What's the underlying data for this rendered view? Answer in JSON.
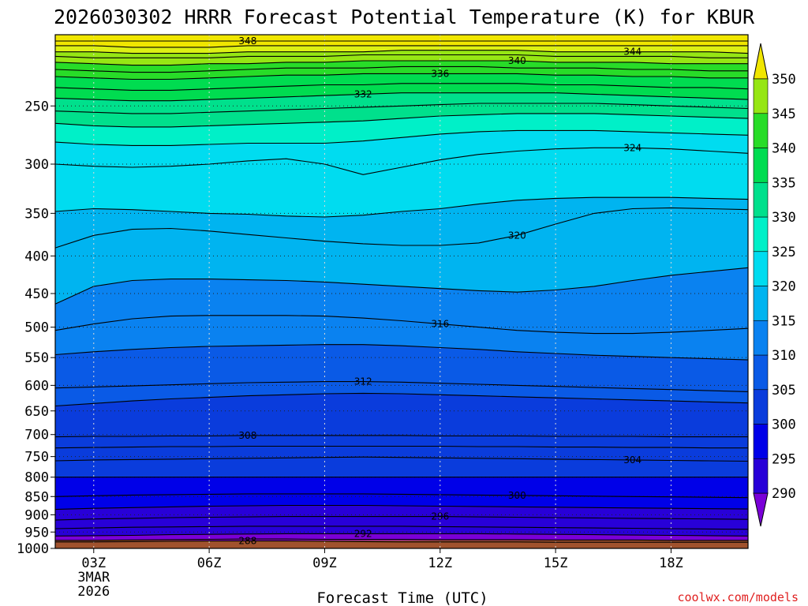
{
  "chart_data": {
    "type": "contour",
    "title": "2026030302 HRRR Forecast Potential Temperature (K) for KBUR",
    "xlabel": "Forecast Time (UTC)",
    "ylabel": "",
    "credit": "coolwx.com/models",
    "x_range_hours": [
      2,
      20
    ],
    "y_range_hpa": [
      200,
      1000
    ],
    "x_ticks": [
      {
        "h": 3,
        "label": "03Z",
        "sub1": "3MAR",
        "sub2": "2026"
      },
      {
        "h": 6,
        "label": "06Z",
        "sub1": "",
        "sub2": ""
      },
      {
        "h": 9,
        "label": "09Z",
        "sub1": "",
        "sub2": ""
      },
      {
        "h": 12,
        "label": "12Z",
        "sub1": "",
        "sub2": ""
      },
      {
        "h": 15,
        "label": "15Z",
        "sub1": "",
        "sub2": ""
      },
      {
        "h": 18,
        "label": "18Z",
        "sub1": "",
        "sub2": ""
      }
    ],
    "y_ticks": [
      "250",
      "300",
      "350",
      "400",
      "450",
      "500",
      "550",
      "600",
      "650",
      "700",
      "750",
      "800",
      "850",
      "900",
      "950",
      "1000"
    ],
    "colorbar": {
      "labels": [
        "290",
        "295",
        "300",
        "305",
        "310",
        "315",
        "320",
        "325",
        "330",
        "335",
        "340",
        "345",
        "350"
      ],
      "colors": [
        "#7a00d8",
        "#2800d8",
        "#0000e8",
        "#0a3cdc",
        "#0a5ae6",
        "#0a82f0",
        "#00b4f0",
        "#00dcf0",
        "#00f0c8",
        "#00e08c",
        "#00dc50",
        "#28dc28",
        "#96e614",
        "#dcf014",
        "#f0e600"
      ]
    },
    "series": [
      {
        "value": 288,
        "label": "288",
        "y_hpa": [
          980,
          980,
          979,
          978,
          977,
          977,
          977,
          978,
          979,
          980,
          980,
          980,
          980,
          981,
          981,
          981,
          981,
          981,
          981
        ]
      },
      {
        "value": 290,
        "label": "",
        "y_hpa": [
          975,
          975,
          974,
          973,
          972,
          971,
          971,
          972,
          972,
          972,
          973,
          973,
          973,
          974,
          974,
          974,
          975,
          975,
          975
        ]
      },
      {
        "value": 292,
        "label": "292",
        "y_hpa": [
          962,
          961,
          960,
          958,
          957,
          956,
          955,
          955,
          955,
          955,
          955,
          955,
          956,
          957,
          958,
          959,
          960,
          961,
          962
        ]
      },
      {
        "value": 294,
        "label": "",
        "y_hpa": [
          940,
          938,
          936,
          935,
          934,
          933,
          933,
          933,
          933,
          933,
          934,
          935,
          936,
          937,
          938,
          939,
          940,
          941,
          942
        ]
      },
      {
        "value": 296,
        "label": "296",
        "y_hpa": [
          915,
          912,
          910,
          908,
          907,
          906,
          905,
          905,
          905,
          905,
          905,
          906,
          907,
          908,
          909,
          910,
          911,
          912,
          913
        ]
      },
      {
        "value": 298,
        "label": "",
        "y_hpa": [
          885,
          882,
          880,
          878,
          876,
          875,
          874,
          874,
          874,
          875,
          876,
          877,
          878,
          879,
          880,
          881,
          882,
          883,
          884
        ]
      },
      {
        "value": 300,
        "label": "300",
        "y_hpa": [
          850,
          848,
          846,
          845,
          844,
          843,
          843,
          843,
          843,
          844,
          845,
          846,
          847,
          848,
          849,
          850,
          851,
          852,
          853
        ]
      },
      {
        "value": 302,
        "label": "",
        "y_hpa": [
          800,
          800,
          800,
          800,
          800,
          800,
          800,
          800,
          800,
          800,
          800,
          800,
          800,
          800,
          800,
          800,
          800,
          800,
          800
        ]
      },
      {
        "value": 304,
        "label": "304",
        "y_hpa": [
          760,
          758,
          757,
          756,
          755,
          754,
          753,
          752,
          751,
          752,
          753,
          754,
          755,
          756,
          757,
          758,
          759,
          760,
          761
        ]
      },
      {
        "value": 306,
        "label": "",
        "y_hpa": [
          730,
          729,
          728,
          727,
          727,
          726,
          726,
          726,
          726,
          726,
          726,
          727,
          727,
          728,
          728,
          729,
          729,
          730,
          730
        ]
      },
      {
        "value": 308,
        "label": "308",
        "y_hpa": [
          705,
          704,
          704,
          703,
          703,
          702,
          702,
          702,
          702,
          702,
          703,
          703,
          703,
          704,
          704,
          704,
          705,
          705,
          705
        ]
      },
      {
        "value": 310,
        "label": "",
        "y_hpa": [
          640,
          635,
          630,
          626,
          623,
          620,
          618,
          616,
          615,
          616,
          618,
          620,
          622,
          624,
          626,
          628,
          630,
          632,
          634
        ]
      },
      {
        "value": 312,
        "label": "312",
        "y_hpa": [
          605,
          603,
          601,
          599,
          597,
          595,
          594,
          593,
          593,
          594,
          596,
          598,
          600,
          602,
          604,
          606,
          608,
          610,
          612
        ]
      },
      {
        "value": 314,
        "label": "",
        "y_hpa": [
          545,
          540,
          536,
          533,
          531,
          530,
          529,
          528,
          528,
          530,
          533,
          536,
          540,
          543,
          546,
          548,
          550,
          552,
          554
        ]
      },
      {
        "value": 316,
        "label": "316",
        "y_hpa": [
          505,
          495,
          487,
          483,
          482,
          482,
          482,
          483,
          486,
          490,
          495,
          500,
          505,
          508,
          510,
          510,
          508,
          505,
          502
        ]
      },
      {
        "value": 318,
        "label": "",
        "y_hpa": [
          465,
          440,
          432,
          430,
          430,
          431,
          432,
          434,
          437,
          440,
          443,
          446,
          448,
          445,
          440,
          432,
          425,
          420,
          415
        ]
      },
      {
        "value": 320,
        "label": "320",
        "y_hpa": [
          390,
          375,
          368,
          367,
          370,
          374,
          378,
          382,
          385,
          387,
          387,
          384,
          375,
          362,
          350,
          345,
          344,
          345,
          346
        ]
      },
      {
        "value": 322,
        "label": "",
        "y_hpa": [
          348,
          345,
          346,
          348,
          350,
          351,
          353,
          354,
          352,
          348,
          345,
          340,
          336,
          334,
          333,
          333,
          333,
          334,
          335
        ]
      },
      {
        "value": 324,
        "label": "324",
        "y_hpa": [
          300,
          302,
          303,
          302,
          300,
          297,
          295,
          300,
          310,
          303,
          296,
          291,
          288,
          286,
          285,
          285,
          286,
          288,
          290
        ]
      },
      {
        "value": 326,
        "label": "",
        "y_hpa": [
          280,
          282,
          283,
          283,
          282,
          281,
          281,
          281,
          279,
          276,
          273,
          271,
          270,
          270,
          270,
          271,
          272,
          273,
          274
        ]
      },
      {
        "value": 328,
        "label": "",
        "y_hpa": [
          264,
          266,
          267,
          267,
          266,
          265,
          264,
          263,
          262,
          260,
          258,
          257,
          256,
          256,
          256,
          257,
          258,
          259,
          260
        ]
      },
      {
        "value": 330,
        "label": "",
        "y_hpa": [
          254,
          255,
          256,
          256,
          255,
          254,
          253,
          252,
          251,
          250,
          249,
          248,
          248,
          248,
          248,
          249,
          250,
          251,
          252
        ]
      },
      {
        "value": 332,
        "label": "332",
        "y_hpa": [
          244,
          245,
          246,
          246,
          245,
          244,
          243,
          242,
          241,
          240,
          240,
          240,
          240,
          240,
          241,
          242,
          243,
          244,
          245
        ]
      },
      {
        "value": 334,
        "label": "",
        "y_hpa": [
          236,
          237,
          238,
          238,
          237,
          236,
          235,
          234,
          234,
          233,
          233,
          233,
          233,
          234,
          234,
          235,
          236,
          236,
          237
        ]
      },
      {
        "value": 336,
        "label": "336",
        "y_hpa": [
          228,
          229,
          230,
          230,
          229,
          228,
          227,
          227,
          226,
          226,
          226,
          226,
          226,
          227,
          227,
          228,
          228,
          229,
          229
        ]
      },
      {
        "value": 338,
        "label": "",
        "y_hpa": [
          223,
          224,
          225,
          225,
          224,
          223,
          222,
          222,
          222,
          221,
          221,
          221,
          222,
          222,
          222,
          223,
          223,
          224,
          224
        ]
      },
      {
        "value": 340,
        "label": "340",
        "y_hpa": [
          218,
          219,
          220,
          220,
          219,
          219,
          218,
          218,
          217,
          217,
          217,
          217,
          217,
          218,
          218,
          218,
          219,
          219,
          219
        ]
      },
      {
        "value": 342,
        "label": "",
        "y_hpa": [
          214,
          215,
          215,
          215,
          215,
          214,
          214,
          214,
          213,
          213,
          213,
          213,
          213,
          214,
          214,
          214,
          214,
          215,
          215
        ]
      },
      {
        "value": 344,
        "label": "344",
        "y_hpa": [
          211,
          211,
          212,
          212,
          212,
          211,
          211,
          211,
          211,
          210,
          210,
          210,
          210,
          211,
          211,
          211,
          211,
          211,
          212
        ]
      },
      {
        "value": 346,
        "label": "",
        "y_hpa": [
          207,
          207,
          208,
          208,
          208,
          207,
          207,
          207,
          207,
          207,
          207,
          207,
          207,
          207,
          207,
          207,
          207,
          207,
          207
        ]
      },
      {
        "value": 348,
        "label": "348",
        "y_hpa": [
          204,
          204,
          204,
          204,
          204,
          204,
          204,
          204,
          204,
          204,
          204,
          204,
          204,
          204,
          204,
          204,
          204,
          204,
          204
        ]
      }
    ],
    "fill_bands": [
      {
        "above_value": 288,
        "color": "#7a00d8"
      },
      {
        "above_value": 292,
        "color": "#2800d8"
      },
      {
        "above_value": 298,
        "color": "#0000e8"
      },
      {
        "above_value": 302,
        "color": "#0a3cdc"
      },
      {
        "above_value": 310,
        "color": "#0a5ae6"
      },
      {
        "above_value": 314,
        "color": "#0a82f0"
      },
      {
        "above_value": 318,
        "color": "#00b4f0"
      },
      {
        "above_value": 322,
        "color": "#00dcf0"
      },
      {
        "above_value": 326,
        "color": "#00f0c8"
      },
      {
        "above_value": 328,
        "color": "#00e08c"
      },
      {
        "above_value": 332,
        "color": "#00dc50"
      },
      {
        "above_value": 336,
        "color": "#28dc28"
      },
      {
        "above_value": 340,
        "color": "#96e614"
      },
      {
        "above_value": 344,
        "color": "#dcf014"
      },
      {
        "above_value": 346,
        "color": "#f0e600"
      }
    ],
    "base_color": "#4a00c8",
    "ground_color": "#a0522d",
    "grid": true,
    "legend": "right colorbar"
  }
}
